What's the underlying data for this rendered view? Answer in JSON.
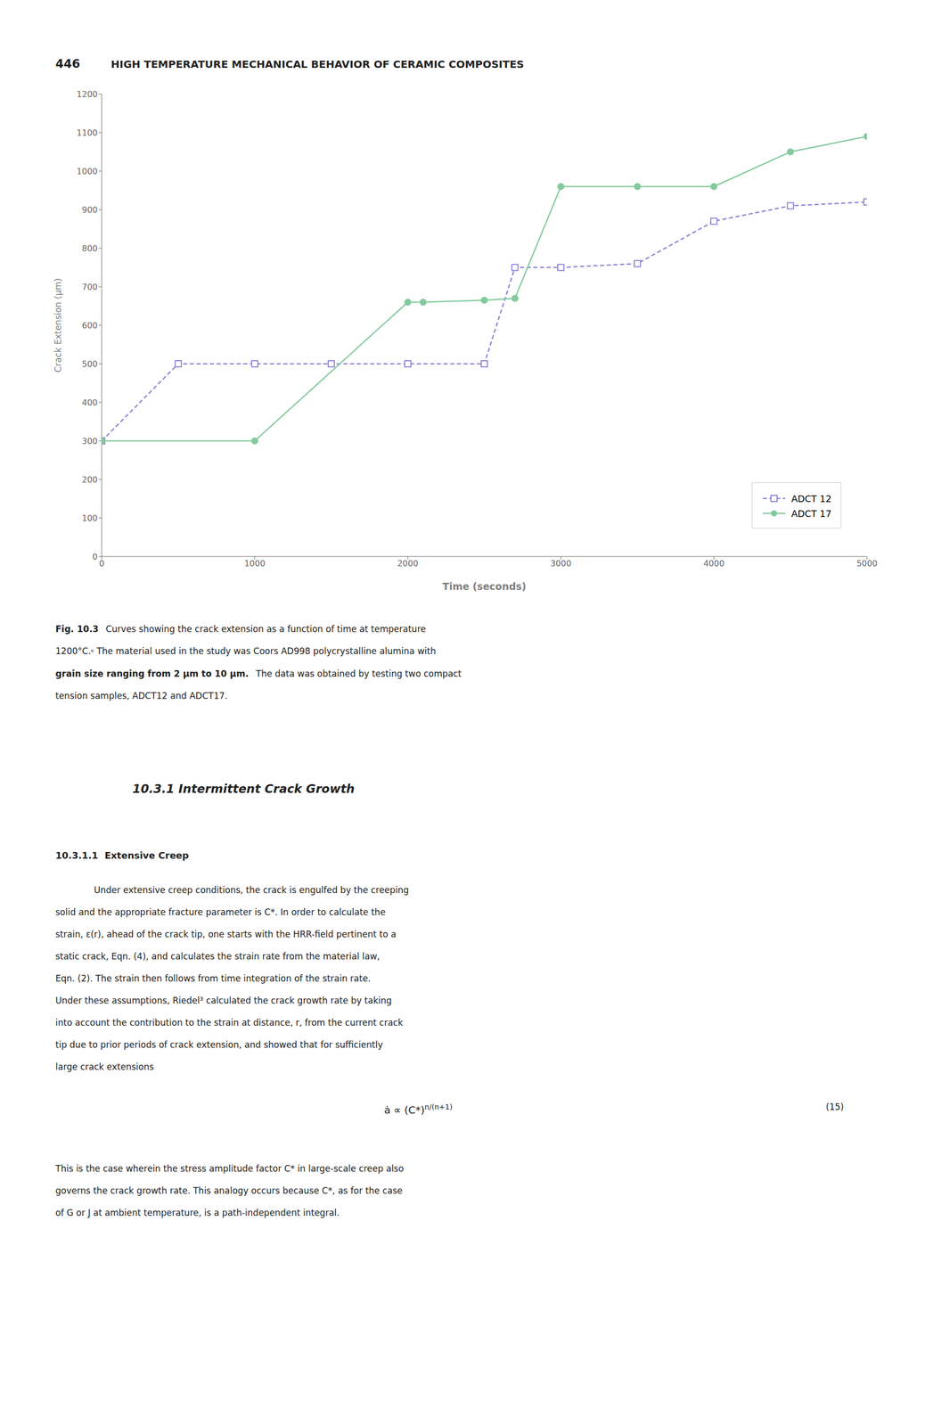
{
  "chart_data": {
    "type": "line",
    "xlabel": "Time (seconds)",
    "ylabel": "Crack Extension (μm)",
    "xlim": [
      0,
      5000
    ],
    "ylim": [
      0,
      1200
    ],
    "xticks": [
      0,
      1000,
      2000,
      3000,
      4000,
      5000
    ],
    "yticks": [
      0,
      100,
      200,
      300,
      400,
      500,
      600,
      700,
      800,
      900,
      1000,
      1100,
      1200
    ],
    "grid": false,
    "legend": "lower right",
    "series": [
      {
        "name": "ADCT 12",
        "x": [
          0,
          500,
          1000,
          1500,
          2000,
          2500,
          2700,
          3000,
          3500,
          4000,
          4500,
          5000
        ],
        "values": [
          300,
          500,
          500,
          500,
          500,
          500,
          750,
          750,
          760,
          870,
          910,
          920
        ],
        "color": "#8884d8",
        "marker": "square",
        "line_style": "dashed"
      },
      {
        "name": "ADCT 17",
        "x": [
          0,
          1000,
          2000,
          2100,
          2500,
          2700,
          3000,
          3500,
          4000,
          4500,
          5000
        ],
        "values": [
          300,
          300,
          660,
          660,
          665,
          670,
          960,
          960,
          960,
          1050,
          1090
        ],
        "color": "#82ca9d",
        "marker": "circle",
        "line_style": "solid"
      }
    ],
    "annotations": [
      [
        "446",
        "HIGH TEMPERATURE MECHANICAL BEHAVIOR OF CERAMIC COMPOSITES"
      ],
      [
        "Fig. 10.3",
        "Curves showing the crack extension as a function of time at temperature"
      ],
      [
        "1200°C.",
        "⁶",
        "The material used in the study was Coors AD998 polycrystalline alumina with"
      ],
      [
        "grain size ranging from 2 μm to 10 μm.",
        "The data was obtained by testing two compact"
      ],
      [
        "tension samples, ADCT12 and ADCT17."
      ],
      [
        "10.3.1  Intermittent Crack Growth"
      ],
      [
        "10.3.1.1  Extensive Creep"
      ],
      [
        "Under extensive creep conditions, the crack is engulfed by the creeping"
      ],
      [
        "solid and the appropriate fracture parameter is C*. In order to calculate the"
      ],
      [
        "strain, ε(r), ahead of the crack tip, one starts with the HRR-field pertinent to a"
      ],
      [
        "static crack, Eqn. (4), and calculates the strain rate from the material law,"
      ],
      [
        "Eqn. (2). The strain then follows from time integration of the strain rate."
      ],
      [
        "Under these assumptions, Riedel³ calculated the crack growth rate by taking"
      ],
      [
        "into account the contribution to the strain at distance, r, from the current crack"
      ],
      [
        "tip due to prior periods of crack extension, and showed that for sufficiently"
      ],
      [
        "large crack extensions"
      ],
      [
        "ȧ ∝ (C*)",
        "n/(n+1)",
        "(15)"
      ],
      [
        "This is the case wherein the stress amplitude factor C* in large-scale creep also"
      ],
      [
        "governs the crack growth rate. This analogy occurs because C*, as for the case"
      ],
      [
        "of G or J at ambient temperature, is a path-independent integral."
      ]
    ]
  }
}
